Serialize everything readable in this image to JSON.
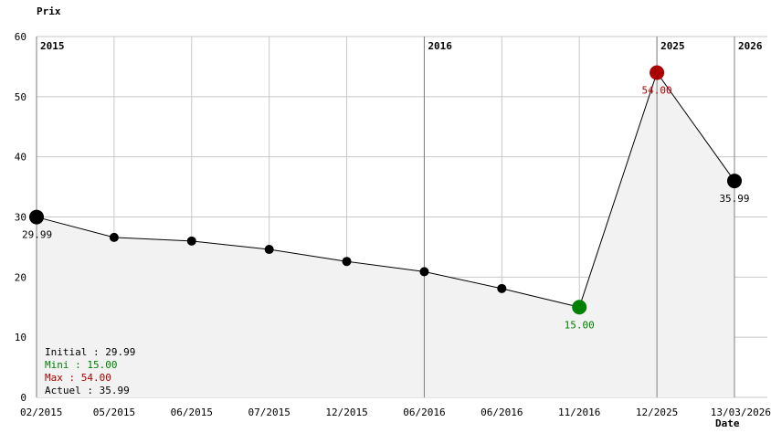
{
  "chart_data": {
    "type": "line",
    "ylabel": "Prix",
    "xlabel": "Date",
    "ylim": [
      0,
      60
    ],
    "yticks": [
      0,
      10,
      20,
      30,
      40,
      50,
      60
    ],
    "grid": true,
    "categories": [
      "02/2015",
      "05/2015",
      "06/2015",
      "07/2015",
      "12/2015",
      "06/2016",
      "06/2016",
      "11/2016",
      "12/2025",
      "13/03/2026"
    ],
    "values": [
      29.99,
      26.6,
      26.0,
      24.6,
      22.6,
      20.9,
      18.1,
      15.0,
      54.0,
      35.99
    ],
    "year_markers": [
      {
        "index": 0,
        "label": "2015"
      },
      {
        "index": 5,
        "label": "2016"
      },
      {
        "index": 8,
        "label": "2025"
      },
      {
        "index": 9,
        "label": "2026"
      }
    ],
    "highlights": [
      {
        "index": 0,
        "label": "29.99",
        "color": "#000000"
      },
      {
        "index": 7,
        "label": "15.00",
        "color": "#008000"
      },
      {
        "index": 8,
        "label": "54.00",
        "color": "#aa0000"
      },
      {
        "index": 9,
        "label": "35.99",
        "color": "#000000"
      }
    ],
    "summary": [
      {
        "text": "Initial : 29.99",
        "color": "#000000"
      },
      {
        "text": "Mini : 15.00",
        "color": "#008000"
      },
      {
        "text": "Max : 54.00",
        "color": "#aa0000"
      },
      {
        "text": "Actuel : 35.99",
        "color": "#000000"
      }
    ]
  }
}
